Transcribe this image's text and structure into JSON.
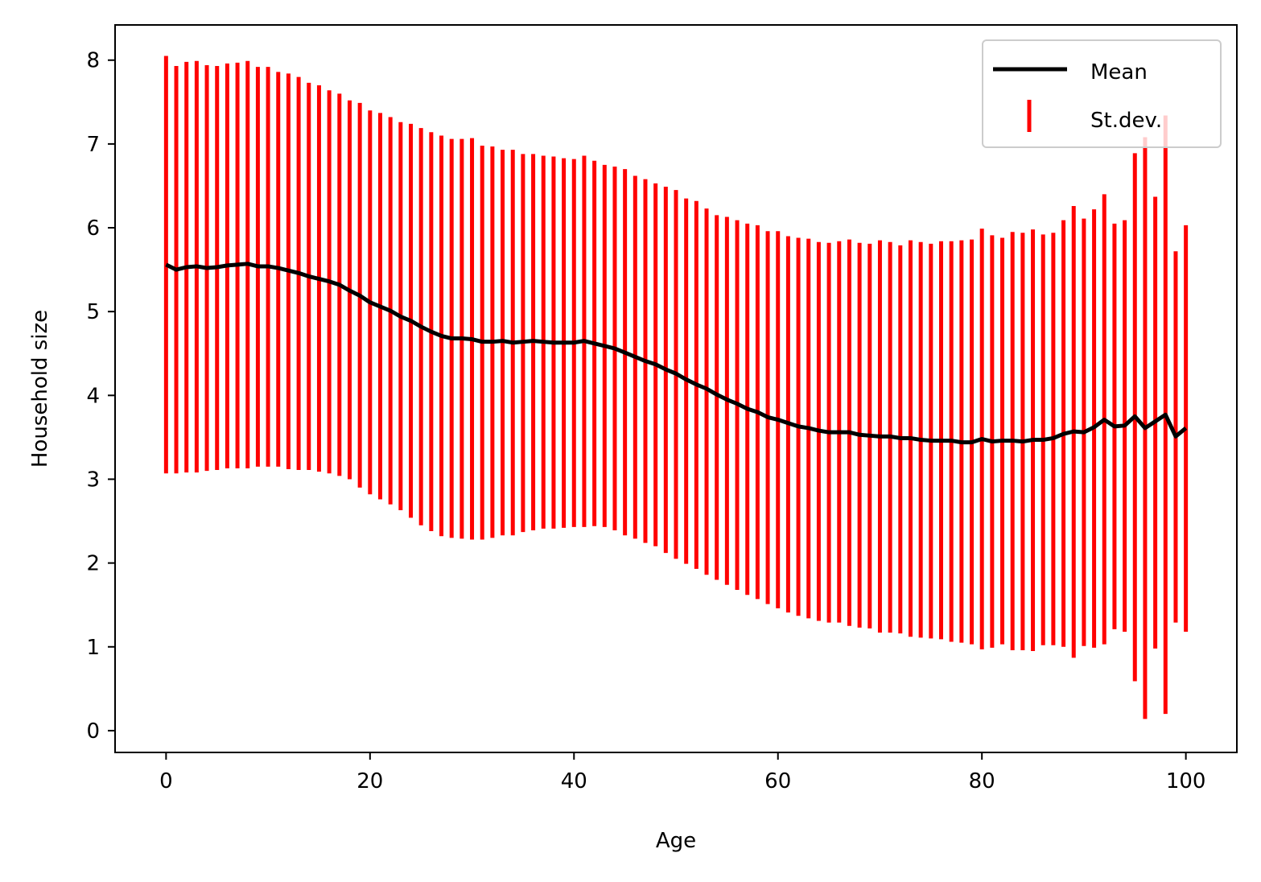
{
  "chart_data": {
    "type": "line",
    "xlabel": "Age",
    "ylabel": "Household size",
    "xlim": [
      -5,
      105
    ],
    "ylim": [
      -0.26,
      8.42
    ],
    "xticks": [
      0,
      20,
      40,
      60,
      80,
      100
    ],
    "yticks": [
      0,
      1,
      2,
      3,
      4,
      5,
      6,
      7,
      8
    ],
    "grid": false,
    "legend_position": "upper right",
    "series": [
      {
        "name": "Mean",
        "kind": "line",
        "color": "#000000",
        "x": [
          0,
          1,
          2,
          3,
          4,
          5,
          6,
          7,
          8,
          9,
          10,
          11,
          12,
          13,
          14,
          15,
          16,
          17,
          18,
          19,
          20,
          21,
          22,
          23,
          24,
          25,
          26,
          27,
          28,
          29,
          30,
          31,
          32,
          33,
          34,
          35,
          36,
          37,
          38,
          39,
          40,
          41,
          42,
          43,
          44,
          45,
          46,
          47,
          48,
          49,
          50,
          51,
          52,
          53,
          54,
          55,
          56,
          57,
          58,
          59,
          60,
          61,
          62,
          63,
          64,
          65,
          66,
          67,
          68,
          69,
          70,
          71,
          72,
          73,
          74,
          75,
          76,
          77,
          78,
          79,
          80,
          81,
          82,
          83,
          84,
          85,
          86,
          87,
          88,
          89,
          90,
          91,
          92,
          93,
          94,
          95,
          96,
          97,
          98,
          99,
          100
        ],
        "y": [
          5.56,
          5.5,
          5.53,
          5.54,
          5.52,
          5.53,
          5.55,
          5.56,
          5.57,
          5.54,
          5.54,
          5.52,
          5.49,
          5.46,
          5.42,
          5.39,
          5.36,
          5.32,
          5.25,
          5.19,
          5.11,
          5.06,
          5.01,
          4.94,
          4.89,
          4.82,
          4.76,
          4.71,
          4.68,
          4.68,
          4.67,
          4.64,
          4.64,
          4.65,
          4.63,
          4.64,
          4.65,
          4.64,
          4.63,
          4.63,
          4.63,
          4.65,
          4.62,
          4.59,
          4.56,
          4.51,
          4.46,
          4.41,
          4.37,
          4.31,
          4.26,
          4.19,
          4.13,
          4.08,
          4.01,
          3.95,
          3.9,
          3.84,
          3.8,
          3.74,
          3.71,
          3.67,
          3.63,
          3.61,
          3.58,
          3.56,
          3.56,
          3.56,
          3.53,
          3.52,
          3.51,
          3.51,
          3.49,
          3.49,
          3.47,
          3.46,
          3.46,
          3.46,
          3.44,
          3.44,
          3.48,
          3.45,
          3.46,
          3.46,
          3.45,
          3.47,
          3.47,
          3.49,
          3.54,
          3.57,
          3.56,
          3.62,
          3.71,
          3.63,
          3.64,
          3.75,
          3.61,
          3.69,
          3.77,
          3.51,
          3.61
        ]
      },
      {
        "name": "St.dev.",
        "kind": "vlines",
        "color": "#ff0000",
        "x": [
          0,
          1,
          2,
          3,
          4,
          5,
          6,
          7,
          8,
          9,
          10,
          11,
          12,
          13,
          14,
          15,
          16,
          17,
          18,
          19,
          20,
          21,
          22,
          23,
          24,
          25,
          26,
          27,
          28,
          29,
          30,
          31,
          32,
          33,
          34,
          35,
          36,
          37,
          38,
          39,
          40,
          41,
          42,
          43,
          44,
          45,
          46,
          47,
          48,
          49,
          50,
          51,
          52,
          53,
          54,
          55,
          56,
          57,
          58,
          59,
          60,
          61,
          62,
          63,
          64,
          65,
          66,
          67,
          68,
          69,
          70,
          71,
          72,
          73,
          74,
          75,
          76,
          77,
          78,
          79,
          80,
          81,
          82,
          83,
          84,
          85,
          86,
          87,
          88,
          89,
          90,
          91,
          92,
          93,
          94,
          95,
          96,
          97,
          98,
          99,
          100
        ],
        "low": [
          3.07,
          3.07,
          3.08,
          3.08,
          3.1,
          3.11,
          3.13,
          3.13,
          3.13,
          3.15,
          3.15,
          3.15,
          3.12,
          3.11,
          3.11,
          3.09,
          3.07,
          3.04,
          3.0,
          2.9,
          2.82,
          2.76,
          2.7,
          2.63,
          2.54,
          2.45,
          2.38,
          2.32,
          2.3,
          2.29,
          2.28,
          2.28,
          2.3,
          2.33,
          2.33,
          2.37,
          2.39,
          2.41,
          2.41,
          2.42,
          2.43,
          2.43,
          2.44,
          2.43,
          2.39,
          2.33,
          2.29,
          2.24,
          2.2,
          2.12,
          2.05,
          1.99,
          1.93,
          1.86,
          1.8,
          1.74,
          1.68,
          1.62,
          1.57,
          1.51,
          1.46,
          1.41,
          1.37,
          1.34,
          1.31,
          1.29,
          1.29,
          1.25,
          1.23,
          1.22,
          1.17,
          1.17,
          1.16,
          1.12,
          1.11,
          1.1,
          1.09,
          1.06,
          1.05,
          1.03,
          0.97,
          0.99,
          1.03,
          0.96,
          0.96,
          0.95,
          1.02,
          1.02,
          1.0,
          0.87,
          1.01,
          0.99,
          1.03,
          1.21,
          1.18,
          0.59,
          0.14,
          0.98,
          0.2,
          1.29,
          1.18
        ]
      }
    ],
    "high": [
      8.05,
      7.93,
      7.98,
      7.99,
      7.94,
      7.93,
      7.96,
      7.97,
      7.99,
      7.92,
      7.92,
      7.86,
      7.84,
      7.8,
      7.73,
      7.7,
      7.64,
      7.6,
      7.52,
      7.49,
      7.4,
      7.37,
      7.32,
      7.26,
      7.24,
      7.19,
      7.14,
      7.1,
      7.06,
      7.06,
      7.07,
      6.98,
      6.97,
      6.93,
      6.93,
      6.88,
      6.88,
      6.86,
      6.85,
      6.83,
      6.82,
      6.86,
      6.8,
      6.75,
      6.73,
      6.7,
      6.62,
      6.58,
      6.53,
      6.49,
      6.45,
      6.35,
      6.32,
      6.23,
      6.15,
      6.13,
      6.09,
      6.05,
      6.03,
      5.96,
      5.96,
      5.9,
      5.88,
      5.87,
      5.83,
      5.82,
      5.84,
      5.86,
      5.82,
      5.81,
      5.85,
      5.83,
      5.79,
      5.85,
      5.83,
      5.81,
      5.84,
      5.84,
      5.85,
      5.86,
      5.99,
      5.91,
      5.88,
      5.95,
      5.94,
      5.98,
      5.92,
      5.94,
      6.09,
      6.26,
      6.11,
      6.22,
      6.4,
      6.05,
      6.09,
      6.89,
      7.08,
      6.37,
      7.34,
      5.72,
      6.03
    ]
  },
  "legend": [
    {
      "label": "Mean",
      "kind": "line",
      "color": "#000000"
    },
    {
      "label": "St.dev.",
      "kind": "vline",
      "color": "#ff0000"
    }
  ]
}
